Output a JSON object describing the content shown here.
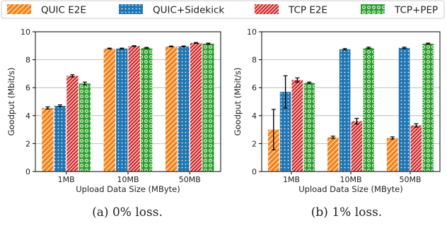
{
  "legend": {
    "items": [
      {
        "label": "QUIC E2E",
        "color": "#ff7f0e",
        "pattern": "diagonal-lines"
      },
      {
        "label": "QUIC+Sidekick",
        "color": "#1f77b4",
        "pattern": "dots"
      },
      {
        "label": "TCP E2E",
        "color": "#d62728",
        "pattern": "diagonal-lines-dense"
      },
      {
        "label": "TCP+PEP",
        "color": "#2ca02c",
        "pattern": "circles"
      }
    ]
  },
  "chart_data": [
    {
      "type": "bar",
      "caption": "(a) 0% loss.",
      "xlabel": "Upload Data Size (MByte)",
      "ylabel": "Goodput (Mbit/s)",
      "ylim": [
        0,
        10
      ],
      "yticks": [
        0,
        2,
        4,
        6,
        8,
        10
      ],
      "categories": [
        "1MB",
        "10MB",
        "50MB"
      ],
      "grid": "horizontal",
      "series": [
        {
          "name": "QUIC E2E",
          "values": [
            4.55,
            8.8,
            8.95
          ],
          "errors": [
            0.08,
            0.03,
            0.03
          ]
        },
        {
          "name": "QUIC+Sidekick",
          "values": [
            4.7,
            8.8,
            8.95
          ],
          "errors": [
            0.07,
            0.03,
            0.03
          ]
        },
        {
          "name": "TCP E2E",
          "values": [
            6.85,
            8.97,
            9.2
          ],
          "errors": [
            0.08,
            0.03,
            0.03
          ]
        },
        {
          "name": "TCP+PEP",
          "values": [
            6.3,
            8.85,
            9.15
          ],
          "errors": [
            0.1,
            0.03,
            0.04
          ]
        }
      ]
    },
    {
      "type": "bar",
      "caption": "(b) 1% loss.",
      "xlabel": "Upload Data Size (MByte)",
      "ylabel": "Goodput (Mbit/s)",
      "ylim": [
        0,
        10
      ],
      "yticks": [
        0,
        2,
        4,
        6,
        8,
        10
      ],
      "categories": [
        "1MB",
        "10MB",
        "50MB"
      ],
      "grid": "horizontal",
      "series": [
        {
          "name": "QUIC E2E",
          "values": [
            3.0,
            2.45,
            2.4
          ],
          "errors": [
            1.45,
            0.08,
            0.08
          ]
        },
        {
          "name": "QUIC+Sidekick",
          "values": [
            5.7,
            8.75,
            8.85
          ],
          "errors": [
            1.15,
            0.05,
            0.05
          ]
        },
        {
          "name": "TCP E2E",
          "values": [
            6.55,
            3.6,
            3.3
          ],
          "errors": [
            0.15,
            0.2,
            0.12
          ]
        },
        {
          "name": "TCP+PEP",
          "values": [
            6.35,
            8.85,
            9.15
          ],
          "errors": [
            0.05,
            0.05,
            0.04
          ]
        }
      ]
    }
  ]
}
